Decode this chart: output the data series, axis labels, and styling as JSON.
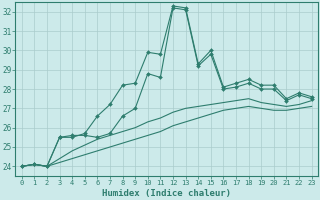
{
  "xlabel": "Humidex (Indice chaleur)",
  "bg_color": "#cceaea",
  "grid_color": "#aacccc",
  "line_color": "#2e7d6e",
  "xlim": [
    -0.5,
    23.5
  ],
  "ylim": [
    23.5,
    32.5
  ],
  "xticks": [
    0,
    1,
    2,
    3,
    4,
    5,
    6,
    7,
    8,
    9,
    10,
    11,
    12,
    13,
    14,
    15,
    16,
    17,
    18,
    19,
    20,
    21,
    22,
    23
  ],
  "yticks": [
    24,
    25,
    26,
    27,
    28,
    29,
    30,
    31,
    32
  ],
  "line1_x": [
    0,
    1,
    2,
    3,
    4,
    5,
    6,
    7,
    8,
    9,
    10,
    11,
    12,
    13,
    14,
    15,
    16,
    17,
    18,
    19,
    20,
    21,
    22,
    23
  ],
  "line1_y": [
    24.0,
    24.1,
    24.0,
    25.5,
    25.5,
    25.7,
    26.6,
    27.2,
    28.2,
    28.3,
    29.9,
    29.8,
    32.3,
    32.2,
    29.3,
    30.0,
    28.1,
    28.3,
    28.5,
    28.2,
    28.2,
    27.5,
    27.8,
    27.6
  ],
  "line2_x": [
    0,
    1,
    2,
    3,
    4,
    5,
    6,
    7,
    8,
    9,
    10,
    11,
    12,
    13,
    14,
    15,
    16,
    17,
    18,
    19,
    20,
    21,
    22,
    23
  ],
  "line2_y": [
    24.0,
    24.1,
    24.0,
    25.5,
    25.6,
    25.6,
    25.5,
    25.7,
    26.6,
    27.0,
    28.8,
    28.6,
    32.2,
    32.1,
    29.2,
    29.8,
    28.0,
    28.1,
    28.3,
    28.0,
    28.0,
    27.4,
    27.7,
    27.5
  ],
  "line3_x": [
    0,
    1,
    2,
    3,
    4,
    5,
    6,
    7,
    8,
    9,
    10,
    11,
    12,
    13,
    14,
    15,
    16,
    17,
    18,
    19,
    20,
    21,
    22,
    23
  ],
  "line3_y": [
    24.0,
    24.1,
    24.0,
    24.4,
    24.8,
    25.1,
    25.4,
    25.6,
    25.8,
    26.0,
    26.3,
    26.5,
    26.8,
    27.0,
    27.1,
    27.2,
    27.3,
    27.4,
    27.5,
    27.3,
    27.2,
    27.1,
    27.2,
    27.4
  ],
  "line4_x": [
    0,
    1,
    2,
    3,
    4,
    5,
    6,
    7,
    8,
    9,
    10,
    11,
    12,
    13,
    14,
    15,
    16,
    17,
    18,
    19,
    20,
    21,
    22,
    23
  ],
  "line4_y": [
    24.0,
    24.1,
    24.0,
    24.2,
    24.4,
    24.6,
    24.8,
    25.0,
    25.2,
    25.4,
    25.6,
    25.8,
    26.1,
    26.3,
    26.5,
    26.7,
    26.9,
    27.0,
    27.1,
    27.0,
    26.9,
    26.9,
    27.0,
    27.1
  ]
}
